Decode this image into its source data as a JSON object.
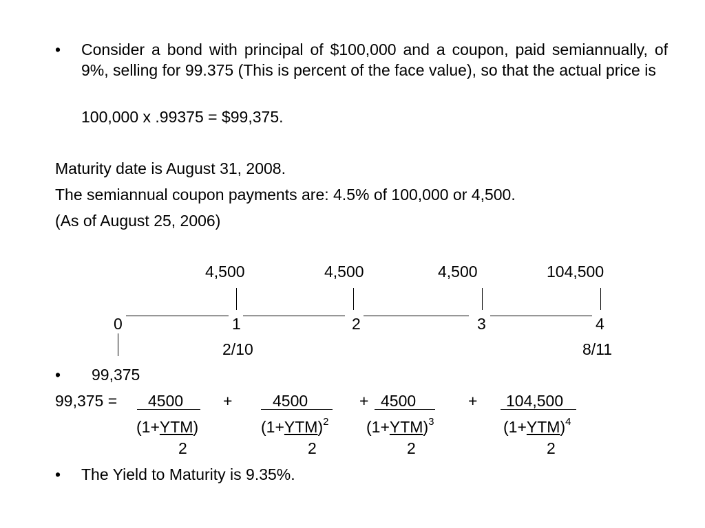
{
  "bullet_char": "•",
  "intro": {
    "paragraph": "Consider a bond with principal of $100,000 and a coupon, paid semiannually, of 9%, selling for 99.375 (This is percent of the face value), so that the actual price is",
    "calculation": "100,000 x .99375 = $99,375."
  },
  "facts": {
    "maturity": "Maturity date is August 31, 2008.",
    "coupon_payments": "The semiannual coupon payments are:  4.5% of 100,000 or 4,500.",
    "as_of": "(As of August 25, 2006)"
  },
  "timeline": {
    "payments": [
      "4,500",
      "4,500",
      "4,500",
      "104,500"
    ],
    "periods": [
      "0",
      "1",
      "2",
      "3",
      "4"
    ],
    "dates": [
      "2/10",
      "8/11"
    ]
  },
  "price_bullet": "99,375",
  "equation": {
    "lhs": "99,375 =",
    "numerators": [
      "4500",
      "4500",
      "4500",
      "104,500"
    ],
    "plus": "+",
    "open": "(1+",
    "ytm": "YTM",
    "close": ")",
    "exponents": [
      "2",
      "3",
      "4"
    ],
    "divisor": "2"
  },
  "conclusion": "The Yield to Maturity is 9.35%."
}
